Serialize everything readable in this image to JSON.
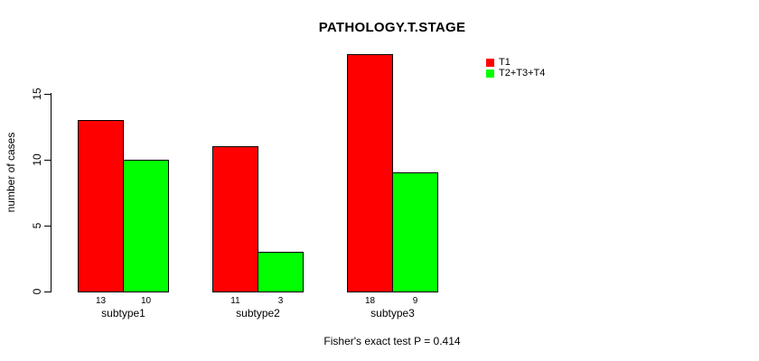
{
  "chart_data": {
    "type": "bar",
    "title": "PATHOLOGY.T.STAGE",
    "categories": [
      "subtype1",
      "subtype2",
      "subtype3"
    ],
    "series": [
      {
        "name": "T1",
        "color": "#FF0000",
        "values": [
          13,
          11,
          18
        ]
      },
      {
        "name": "T2+T3+T4",
        "color": "#00FF00",
        "values": [
          10,
          3,
          9
        ]
      }
    ],
    "ylabel": "number of cases",
    "xlabel": "",
    "y_ticks": [
      0,
      5,
      10,
      15
    ],
    "ylim": [
      0,
      18
    ],
    "grid": false,
    "bar_value_labels_shown": true,
    "legend_position": "top-right",
    "annotation": "Fisher's exact test P = 0.414",
    "colors": {
      "background": "#FFFFFF",
      "axis": "#000000",
      "text": "#000000",
      "bar_border": "#000000"
    }
  }
}
